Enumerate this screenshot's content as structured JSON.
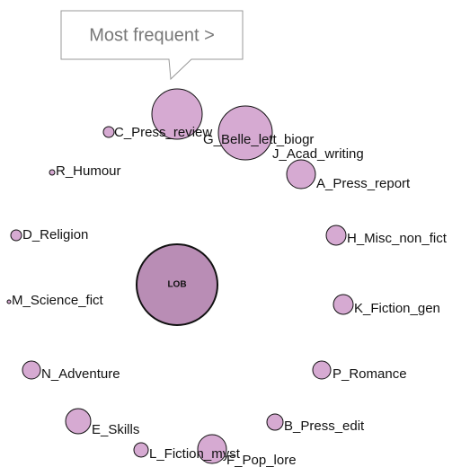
{
  "tooltip": {
    "text": "Most frequent >"
  },
  "center": {
    "label": "LOB"
  },
  "nodes": [
    {
      "label": "C_Press_review"
    },
    {
      "label": "G_Belle_lett_biogr"
    },
    {
      "label": "J_Acad_writing"
    },
    {
      "label": "A_Press_report"
    },
    {
      "label": "R_Humour"
    },
    {
      "label": "D_Religion"
    },
    {
      "label": "M_Science_fict"
    },
    {
      "label": "N_Adventure"
    },
    {
      "label": "E_Skills"
    },
    {
      "label": "L_Fiction_myst"
    },
    {
      "label": "F_Pop_lore"
    },
    {
      "label": "B_Press_edit"
    },
    {
      "label": "P_Romance"
    },
    {
      "label": "K_Fiction_gen"
    },
    {
      "label": "H_Misc_non_fict"
    }
  ]
}
